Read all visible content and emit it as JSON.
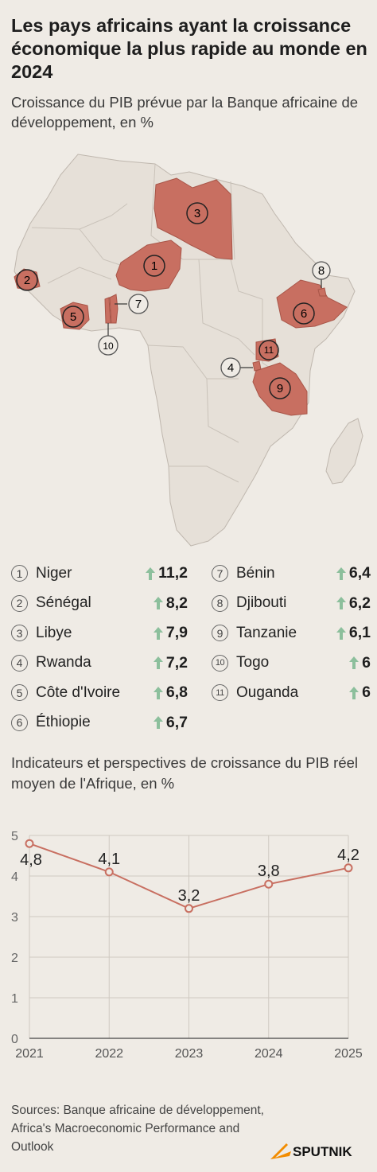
{
  "title": "Les pays africains ayant la croissance économique la plus rapide au monde en 2024",
  "subtitle": "Croissance du PIB prévue par la Banque africaine de développement, en %",
  "colors": {
    "background": "#efebe5",
    "land": "#e6e0d8",
    "border": "#bfb7ae",
    "highlight": "#c86f61",
    "arrow": "#8cbf9c",
    "line": "#c86f61"
  },
  "map_labels": [
    "1",
    "2",
    "3",
    "4",
    "5",
    "6",
    "7",
    "8",
    "9",
    "10",
    "11"
  ],
  "ranking": [
    {
      "rank": "1",
      "country": "Niger",
      "value": "11,2"
    },
    {
      "rank": "2",
      "country": "Sénégal",
      "value": "8,2"
    },
    {
      "rank": "3",
      "country": "Libye",
      "value": "7,9"
    },
    {
      "rank": "4",
      "country": "Rwanda",
      "value": "7,2"
    },
    {
      "rank": "5",
      "country": "Côte d'Ivoire",
      "value": "6,8"
    },
    {
      "rank": "6",
      "country": "Éthiopie",
      "value": "6,7"
    },
    {
      "rank": "7",
      "country": "Bénin",
      "value": "6,4"
    },
    {
      "rank": "8",
      "country": "Djibouti",
      "value": "6,2"
    },
    {
      "rank": "9",
      "country": "Tanzanie",
      "value": "6,1"
    },
    {
      "rank": "10",
      "country": "Togo",
      "value": "6"
    },
    {
      "rank": "11",
      "country": "Ouganda",
      "value": "6"
    }
  ],
  "section2_title": "Indicateurs et perspectives de croissance du PIB réel moyen de l'Afrique, en %",
  "chart_data": {
    "type": "line",
    "x": [
      2021,
      2022,
      2023,
      2024,
      2025
    ],
    "x_labels": [
      "2021",
      "2022",
      "2023",
      "2024",
      "2025"
    ],
    "values": [
      4.8,
      4.1,
      3.2,
      3.8,
      4.2
    ],
    "value_labels": [
      "4,8",
      "4,1",
      "3,2",
      "3,8",
      "4,2"
    ],
    "ylim": [
      0,
      5
    ],
    "y_ticks": [
      "0",
      "1",
      "2",
      "3",
      "4",
      "5"
    ],
    "grid": true
  },
  "sources": "Sources: Banque africaine de développement, Africa's Macroeconomic Performance and Outlook",
  "logo_text": "SPUTNIK"
}
